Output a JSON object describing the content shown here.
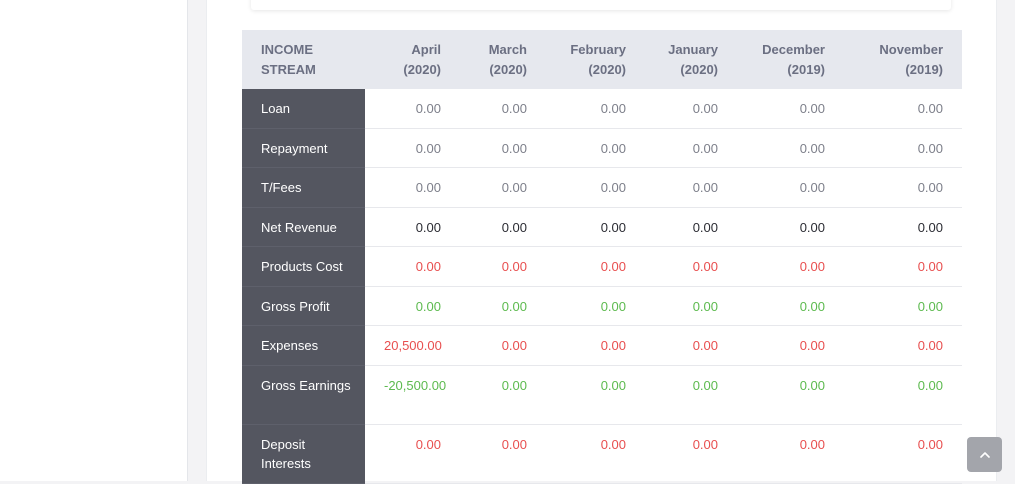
{
  "table": {
    "header": {
      "stream": "INCOME STREAM",
      "months": [
        "April (2020)",
        "March (2020)",
        "February (2020)",
        "January (2020)",
        "December (2019)",
        "November (2019)"
      ]
    },
    "rows": [
      {
        "label": "Loan",
        "tone": "gray",
        "values": [
          "0.00",
          "0.00",
          "0.00",
          "0.00",
          "0.00",
          "0.00"
        ]
      },
      {
        "label": "Repayment",
        "tone": "gray",
        "values": [
          "0.00",
          "0.00",
          "0.00",
          "0.00",
          "0.00",
          "0.00"
        ]
      },
      {
        "label": "T/Fees",
        "tone": "gray",
        "values": [
          "0.00",
          "0.00",
          "0.00",
          "0.00",
          "0.00",
          "0.00"
        ]
      },
      {
        "label": "Net Revenue",
        "tone": "dark",
        "values": [
          "0.00",
          "0.00",
          "0.00",
          "0.00",
          "0.00",
          "0.00"
        ]
      },
      {
        "label": "Products Cost",
        "tone": "red",
        "values": [
          "0.00",
          "0.00",
          "0.00",
          "0.00",
          "0.00",
          "0.00"
        ]
      },
      {
        "label": "Gross Profit",
        "tone": "green",
        "values": [
          "0.00",
          "0.00",
          "0.00",
          "0.00",
          "0.00",
          "0.00"
        ]
      },
      {
        "label": "Expenses",
        "tone": "red",
        "values": [
          "20,500.00",
          "0.00",
          "0.00",
          "0.00",
          "0.00",
          "0.00"
        ]
      },
      {
        "label": "Gross Earnings",
        "tone": "green",
        "values": [
          "-20,500.00",
          "0.00",
          "0.00",
          "0.00",
          "0.00",
          "0.00"
        ]
      },
      {
        "label": "Deposit Interests",
        "tone": "red",
        "values": [
          "0.00",
          "0.00",
          "0.00",
          "0.00",
          "0.00",
          "0.00"
        ]
      }
    ]
  },
  "colors": {
    "sidebar_bg": "#ffffff",
    "header_bg": "#e6e8ee",
    "row_label_bg": "#545660",
    "red": "#e84f4f",
    "green": "#5dba4f",
    "gray": "#7d7f8a",
    "dark": "#2b2c33"
  },
  "scroll_top_button": {
    "icon": "chevron-up-icon"
  }
}
